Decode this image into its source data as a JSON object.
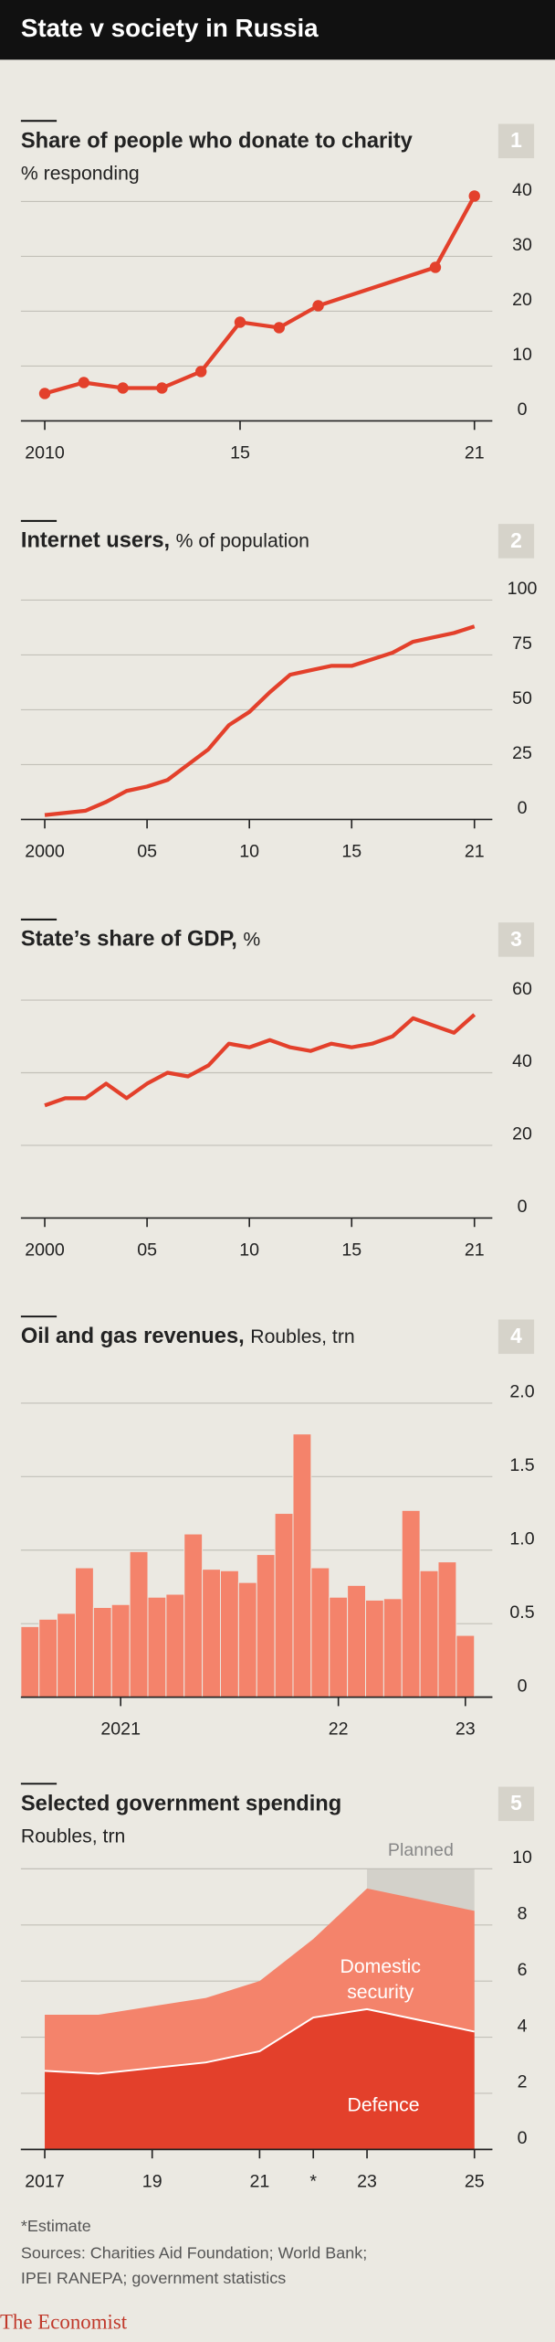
{
  "header": {
    "title": "State v society in Russia"
  },
  "chart_data": [
    {
      "type": "line",
      "panel": "1",
      "title": "Share of people who donate to charity",
      "subtitle": "% responding",
      "x": [
        2010,
        2011,
        2012,
        2013,
        2014,
        2015,
        2016,
        2017,
        2020,
        2021
      ],
      "values": [
        5,
        7,
        6,
        6,
        9,
        18,
        17,
        21,
        28,
        41
      ],
      "color": "#e3402b",
      "markers": true,
      "xlim": [
        2010,
        2021
      ],
      "xticks": [
        2010,
        {
          "value": 2015,
          "label": "15"
        },
        {
          "value": 2021,
          "label": "21"
        }
      ],
      "ylim": [
        0,
        40
      ],
      "yticks": [
        0,
        10,
        20,
        30,
        40
      ],
      "grid": true
    },
    {
      "type": "line",
      "panel": "2",
      "title": "Internet users,",
      "subtitle": "% of population",
      "x": [
        2000,
        2001,
        2002,
        2003,
        2004,
        2005,
        2006,
        2007,
        2008,
        2009,
        2010,
        2011,
        2012,
        2013,
        2014,
        2015,
        2016,
        2017,
        2018,
        2019,
        2020,
        2021
      ],
      "values": [
        2,
        3,
        4,
        8,
        13,
        15,
        18,
        25,
        32,
        43,
        49,
        58,
        66,
        68,
        70,
        70,
        73,
        76,
        81,
        83,
        85,
        88
      ],
      "color": "#e3402b",
      "markers": false,
      "xlim": [
        2000,
        2021
      ],
      "xticks": [
        2000,
        {
          "value": 2005,
          "label": "05"
        },
        {
          "value": 2010,
          "label": "10"
        },
        {
          "value": 2015,
          "label": "15"
        },
        {
          "value": 2021,
          "label": "21"
        }
      ],
      "ylim": [
        0,
        100
      ],
      "yticks": [
        0,
        25,
        50,
        75,
        100
      ],
      "grid": true
    },
    {
      "type": "line",
      "panel": "3",
      "title": "State’s share of GDP,",
      "subtitle": "%",
      "x": [
        2000,
        2001,
        2002,
        2003,
        2004,
        2005,
        2006,
        2007,
        2008,
        2009,
        2010,
        2011,
        2012,
        2013,
        2014,
        2015,
        2016,
        2017,
        2018,
        2019,
        2020,
        2021
      ],
      "values": [
        31,
        33,
        33,
        37,
        33,
        37,
        40,
        39,
        42,
        48,
        47,
        49,
        47,
        46,
        48,
        47,
        48,
        50,
        55,
        53,
        51,
        56
      ],
      "color": "#e3402b",
      "markers": false,
      "xlim": [
        2000,
        2021
      ],
      "xticks": [
        2000,
        {
          "value": 2005,
          "label": "05"
        },
        {
          "value": 2010,
          "label": "10"
        },
        {
          "value": 2015,
          "label": "15"
        },
        {
          "value": 2021,
          "label": "21"
        }
      ],
      "ylim": [
        0,
        60
      ],
      "yticks": [
        0,
        20,
        40,
        60
      ],
      "grid": true
    },
    {
      "type": "bar",
      "panel": "4",
      "title": "Oil and gas revenues,",
      "subtitle": "Roubles, trn",
      "categories": [
        null,
        null,
        null,
        null,
        null,
        "2021",
        null,
        null,
        null,
        null,
        null,
        null,
        null,
        null,
        null,
        null,
        null,
        "22",
        null,
        null,
        null,
        null,
        null,
        null,
        "23"
      ],
      "values": [
        0.48,
        0.53,
        0.57,
        0.88,
        0.61,
        0.63,
        0.99,
        0.68,
        0.7,
        1.11,
        0.87,
        0.86,
        0.78,
        0.97,
        1.25,
        1.79,
        0.88,
        0.68,
        0.76,
        0.66,
        0.67,
        1.27,
        0.86,
        0.92,
        0.42
      ],
      "color": "#f4836b",
      "ylim": [
        0,
        2
      ],
      "yticks": [
        0,
        0.5,
        {
          "value": 1,
          "label": "1.0"
        },
        1.5,
        {
          "value": 2,
          "label": "2.0"
        }
      ],
      "grid": true
    },
    {
      "type": "area",
      "panel": "5",
      "title": "Selected government spending",
      "subtitle": "Roubles, trn",
      "x": [
        2017,
        2018,
        2019,
        2020,
        2021,
        2022,
        2023,
        2024,
        2025
      ],
      "series": [
        {
          "name": "Defence",
          "color": "#e3402b",
          "values": [
            2.8,
            2.7,
            2.9,
            3.1,
            3.5,
            4.7,
            5.0,
            4.6,
            4.2
          ]
        },
        {
          "name": "Domestic security",
          "color": "#f4836b",
          "values": [
            2.0,
            2.1,
            2.2,
            2.3,
            2.5,
            2.8,
            4.3,
            4.3,
            4.3
          ]
        }
      ],
      "stacked": true,
      "annotations": [
        {
          "text": "Planned",
          "x_start": 2023,
          "x_end": 2025,
          "color": "#d3d1ca"
        }
      ],
      "xlim": [
        2017,
        2025
      ],
      "xticks": [
        2017,
        {
          "value": 2019,
          "label": "19"
        },
        {
          "value": 2021,
          "label": "21"
        },
        {
          "value": 2022,
          "label": "*"
        },
        {
          "value": 2023,
          "label": "23"
        },
        {
          "value": 2025,
          "label": "25"
        }
      ],
      "ylim": [
        0,
        10
      ],
      "yticks": [
        0,
        2,
        4,
        6,
        8,
        10
      ],
      "grid": true
    }
  ],
  "notes": [
    "*Estimate",
    "Sources: Charities Aid Foundation; World Bank;",
    "IPEI RANEPA; government statistics"
  ],
  "brand": "The Economist"
}
